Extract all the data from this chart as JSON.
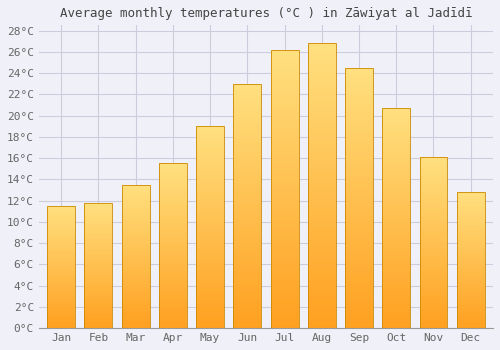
{
  "title": "Average monthly temperatures (°C ) in Zāwiyat al Jadīdī",
  "months": [
    "Jan",
    "Feb",
    "Mar",
    "Apr",
    "May",
    "Jun",
    "Jul",
    "Aug",
    "Sep",
    "Oct",
    "Nov",
    "Dec"
  ],
  "values": [
    11.5,
    11.8,
    13.5,
    15.5,
    19.0,
    23.0,
    26.2,
    26.8,
    24.5,
    20.7,
    16.1,
    12.8
  ],
  "bar_color_top": "#FFE080",
  "bar_color_bottom": "#FFA020",
  "bar_edge_color": "#CC8800",
  "ylim": [
    0,
    28
  ],
  "ytick_max": 28,
  "ytick_step": 2,
  "background_color": "#F0F0F8",
  "plot_bg_color": "#F0F0F8",
  "grid_color": "#CCCCDD",
  "title_fontsize": 9,
  "tick_fontsize": 8,
  "font_family": "monospace"
}
